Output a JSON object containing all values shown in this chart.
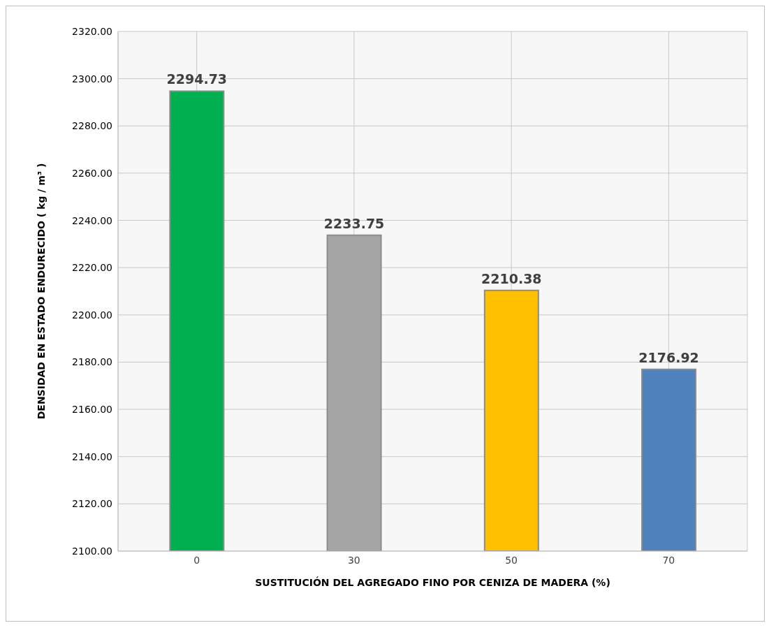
{
  "chart_data": {
    "type": "bar",
    "xlabel": "SUSTITUCIÓN DEL AGREGADO FINO POR CENIZA DE MADERA  (%)",
    "ylabel": "DENSIDAD EN ESTADO ENDURECIDO      ( kg / m³ )",
    "categories": [
      "0",
      "30",
      "50",
      "70"
    ],
    "values": [
      2294.73,
      2233.75,
      2210.38,
      2176.92
    ],
    "colors": [
      "#00b050",
      "#a5a5a5",
      "#ffc000",
      "#4f81bd"
    ],
    "ylim": [
      2100,
      2320
    ],
    "yticks": [
      {
        "value": 2100,
        "label": "2100.00"
      },
      {
        "value": 2120,
        "label": "2120.00"
      },
      {
        "value": 2140,
        "label": "2140.00"
      },
      {
        "value": 2160,
        "label": "2160.00"
      },
      {
        "value": 2180,
        "label": "2180.00"
      },
      {
        "value": 2200,
        "label": "2200.00"
      },
      {
        "value": 2220,
        "label": "2220.00"
      },
      {
        "value": 2240,
        "label": "2240.00"
      },
      {
        "value": 2260,
        "label": "2260.00"
      },
      {
        "value": 2280,
        "label": "2280.00"
      },
      {
        "value": 2300,
        "label": "2300.00"
      },
      {
        "value": 2320,
        "label": "2320.00"
      }
    ],
    "grid": true,
    "data_labels": true
  }
}
